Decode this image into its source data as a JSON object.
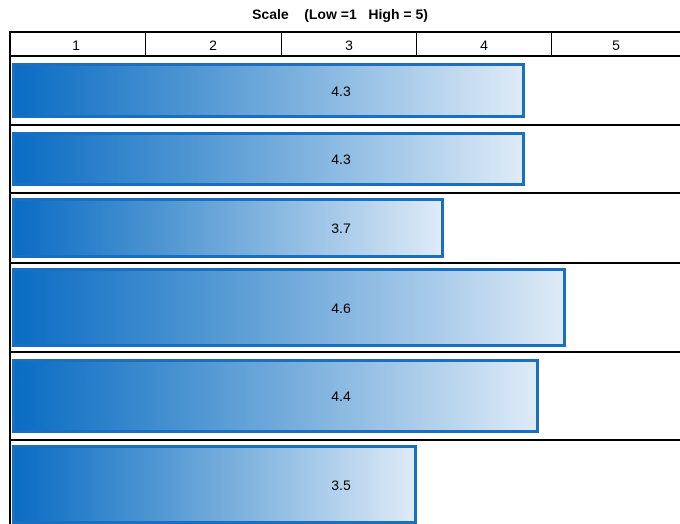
{
  "chart_data": {
    "type": "bar",
    "orientation": "horizontal",
    "title": "Scale    (Low =1   High = 5)",
    "scale_ticks": [
      "1",
      "2",
      "3",
      "4",
      "5"
    ],
    "xlim": [
      0.5,
      5.5
    ],
    "grid": false,
    "categories": [
      "",
      "",
      "",
      "",
      "",
      ""
    ],
    "values": [
      4.3,
      4.3,
      3.7,
      4.6,
      4.4,
      3.5
    ],
    "value_labels": [
      "4.3",
      "4.3",
      "3.7",
      "4.6",
      "4.4",
      "3.5"
    ],
    "colors": {
      "bar_start": "#0a6cc4",
      "bar_end": "#deebf7",
      "bar_border": "#1b6fc0"
    }
  }
}
